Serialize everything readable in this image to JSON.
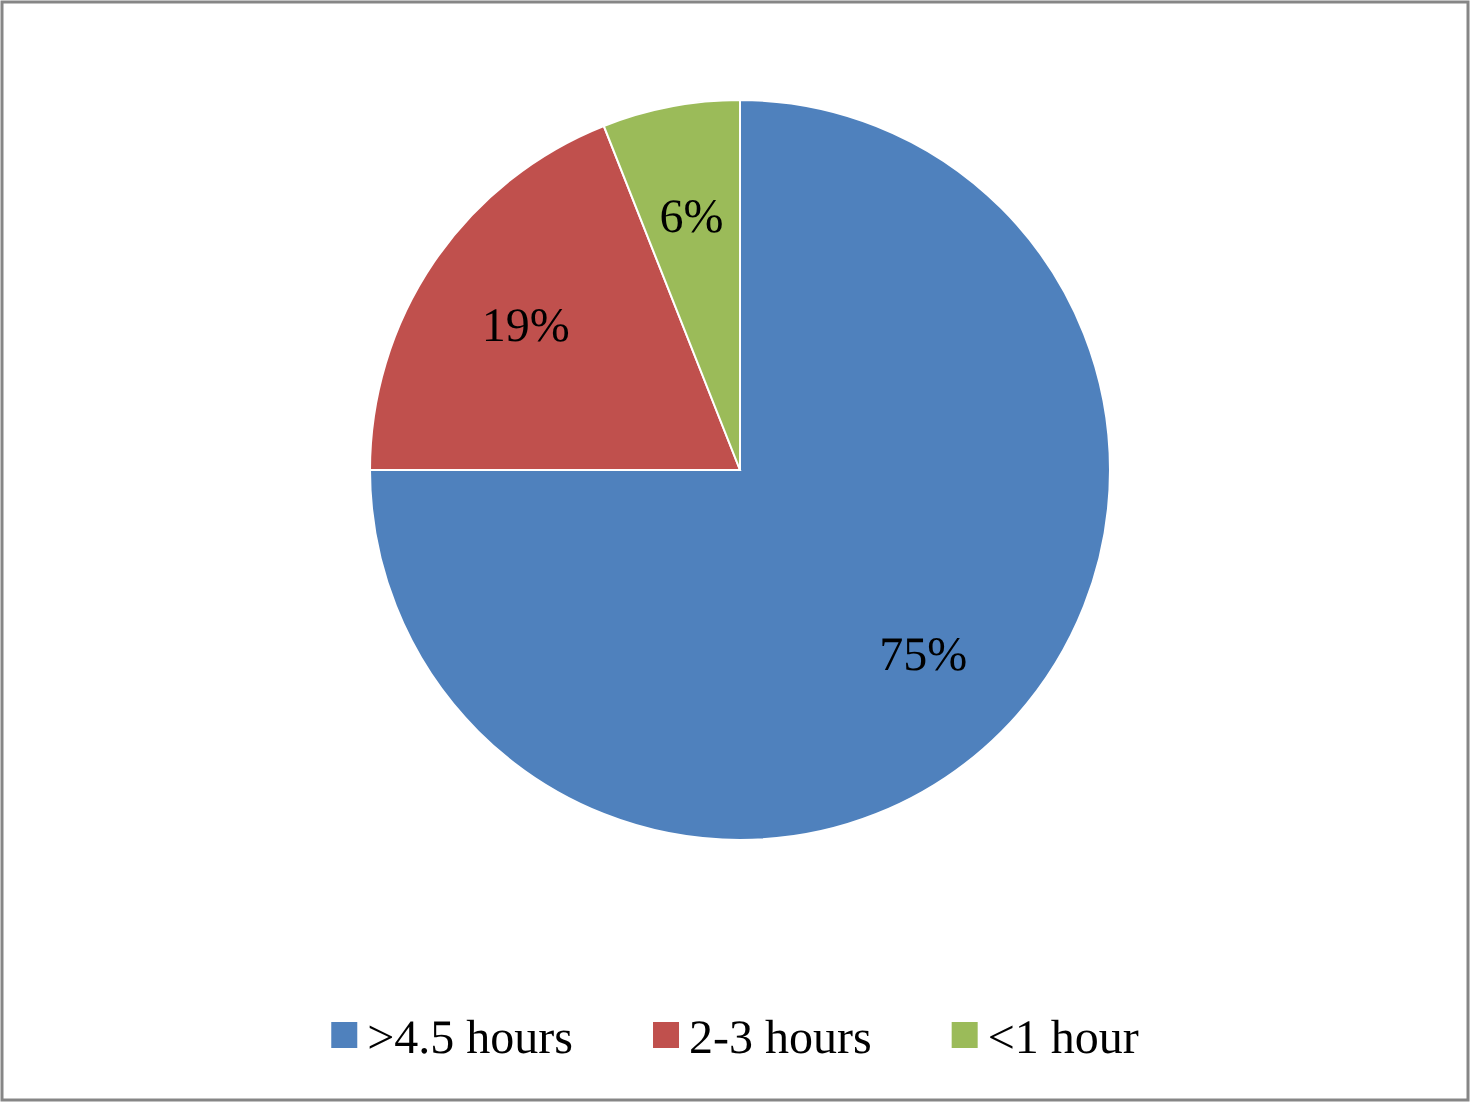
{
  "chart_data": {
    "type": "pie",
    "categories": [
      ">4.5 hours",
      "2-3 hours",
      "<1 hour"
    ],
    "values": [
      75,
      19,
      6
    ],
    "colors": [
      "#4f81bd",
      "#c0504d",
      "#9bbb59"
    ],
    "value_labels": [
      "75%",
      "19%",
      "6%"
    ],
    "legend": "bottom"
  }
}
